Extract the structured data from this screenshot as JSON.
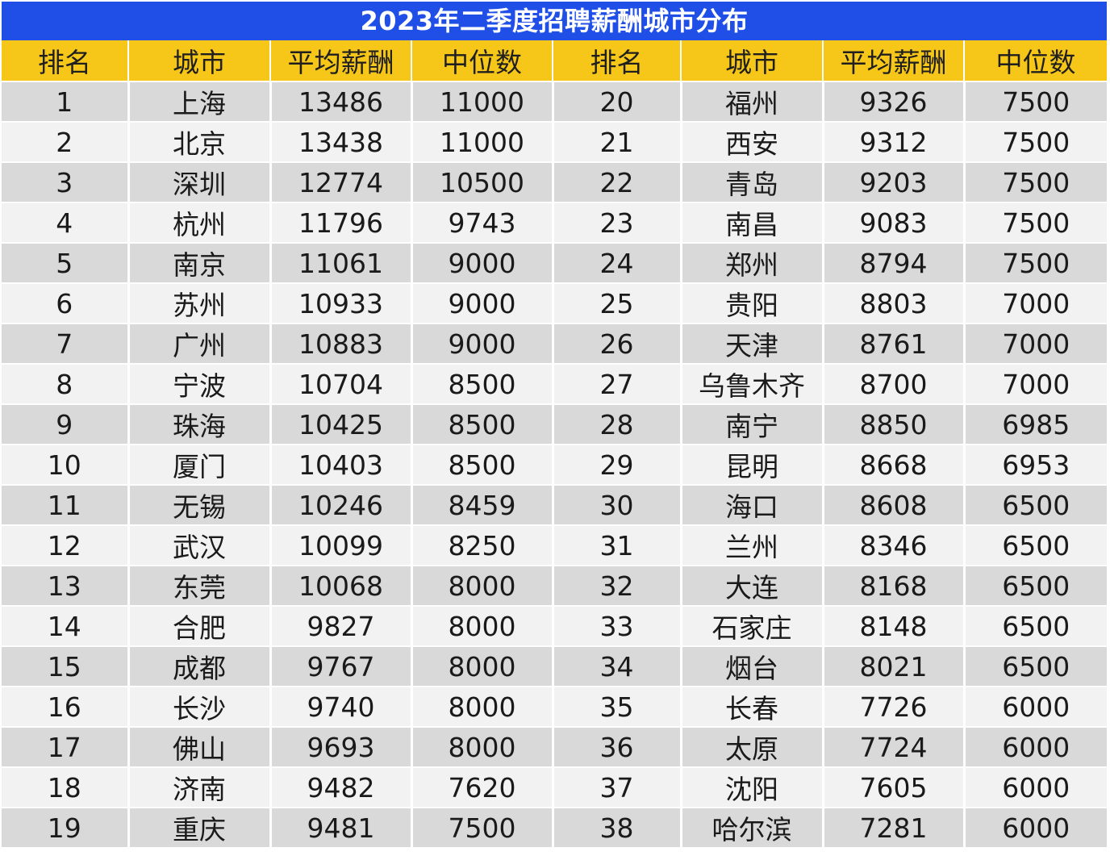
{
  "title": "2023年二季度招聘薪酬城市分布",
  "colors": {
    "title_bg": "#1f4fe6",
    "header_bg": "#f6c619",
    "row_odd": "#d9d9d9",
    "row_even": "#f2f2f2"
  },
  "chart_data": {
    "type": "table",
    "title": "2023年二季度招聘薪酬城市分布",
    "columns": [
      "排名",
      "城市",
      "平均薪酬",
      "中位数",
      "排名",
      "城市",
      "平均薪酬",
      "中位数"
    ],
    "rows": [
      [
        "1",
        "上海",
        "13486",
        "11000",
        "20",
        "福州",
        "9326",
        "7500"
      ],
      [
        "2",
        "北京",
        "13438",
        "11000",
        "21",
        "西安",
        "9312",
        "7500"
      ],
      [
        "3",
        "深圳",
        "12774",
        "10500",
        "22",
        "青岛",
        "9203",
        "7500"
      ],
      [
        "4",
        "杭州",
        "11796",
        "9743",
        "23",
        "南昌",
        "9083",
        "7500"
      ],
      [
        "5",
        "南京",
        "11061",
        "9000",
        "24",
        "郑州",
        "8794",
        "7500"
      ],
      [
        "6",
        "苏州",
        "10933",
        "9000",
        "25",
        "贵阳",
        "8803",
        "7000"
      ],
      [
        "7",
        "广州",
        "10883",
        "9000",
        "26",
        "天津",
        "8761",
        "7000"
      ],
      [
        "8",
        "宁波",
        "10704",
        "8500",
        "27",
        "乌鲁木齐",
        "8700",
        "7000"
      ],
      [
        "9",
        "珠海",
        "10425",
        "8500",
        "28",
        "南宁",
        "8850",
        "6985"
      ],
      [
        "10",
        "厦门",
        "10403",
        "8500",
        "29",
        "昆明",
        "8668",
        "6953"
      ],
      [
        "11",
        "无锡",
        "10246",
        "8459",
        "30",
        "海口",
        "8608",
        "6500"
      ],
      [
        "12",
        "武汉",
        "10099",
        "8250",
        "31",
        "兰州",
        "8346",
        "6500"
      ],
      [
        "13",
        "东莞",
        "10068",
        "8000",
        "32",
        "大连",
        "8168",
        "6500"
      ],
      [
        "14",
        "合肥",
        "9827",
        "8000",
        "33",
        "石家庄",
        "8148",
        "6500"
      ],
      [
        "15",
        "成都",
        "9767",
        "8000",
        "34",
        "烟台",
        "8021",
        "6500"
      ],
      [
        "16",
        "长沙",
        "9740",
        "8000",
        "35",
        "长春",
        "7726",
        "6000"
      ],
      [
        "17",
        "佛山",
        "9693",
        "8000",
        "36",
        "太原",
        "7724",
        "6000"
      ],
      [
        "18",
        "济南",
        "9482",
        "7620",
        "37",
        "沈阳",
        "7605",
        "6000"
      ],
      [
        "19",
        "重庆",
        "9481",
        "7500",
        "38",
        "哈尔滨",
        "7281",
        "6000"
      ]
    ]
  }
}
